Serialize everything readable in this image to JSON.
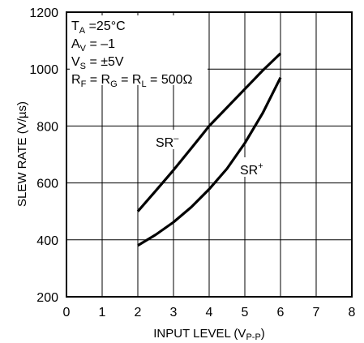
{
  "chart_data": {
    "type": "line",
    "xlabel": "INPUT LEVEL (V",
    "xlabel_sub": "P-P",
    "xlabel_end": ")",
    "ylabel": "SLEW RATE (V/µs)",
    "xlim": [
      0,
      8
    ],
    "ylim": [
      200,
      1200
    ],
    "x_ticks": [
      "0",
      "1",
      "2",
      "3",
      "4",
      "5",
      "6",
      "7",
      "8"
    ],
    "y_ticks": [
      "200",
      "400",
      "600",
      "800",
      "1000",
      "1200"
    ],
    "grid": true,
    "conditions": [
      {
        "main": "T",
        "sub": "A",
        "rest": " =25°C"
      },
      {
        "main": "A",
        "sub": "V",
        "rest": " = –1"
      },
      {
        "main": "V",
        "sub": "S",
        "rest": " = ±5V"
      },
      {
        "main": "R",
        "sub": "F",
        "rest": " = R",
        "sub2": "G",
        "rest2": " = R",
        "sub3": "L",
        "rest3": " = 500Ω"
      }
    ],
    "series": [
      {
        "name": "SR",
        "sign": "–",
        "x": [
          2.0,
          2.5,
          3.0,
          3.5,
          4.0,
          4.5,
          5.0,
          5.5,
          6.0
        ],
        "y": [
          500,
          572,
          645,
          722,
          800,
          865,
          930,
          995,
          1055
        ]
      },
      {
        "name": "SR",
        "sign": "+",
        "x": [
          2.0,
          2.5,
          3.0,
          3.5,
          4.0,
          4.5,
          5.0,
          5.5,
          6.0
        ],
        "y": [
          380,
          418,
          462,
          515,
          578,
          650,
          740,
          845,
          970
        ]
      }
    ]
  }
}
